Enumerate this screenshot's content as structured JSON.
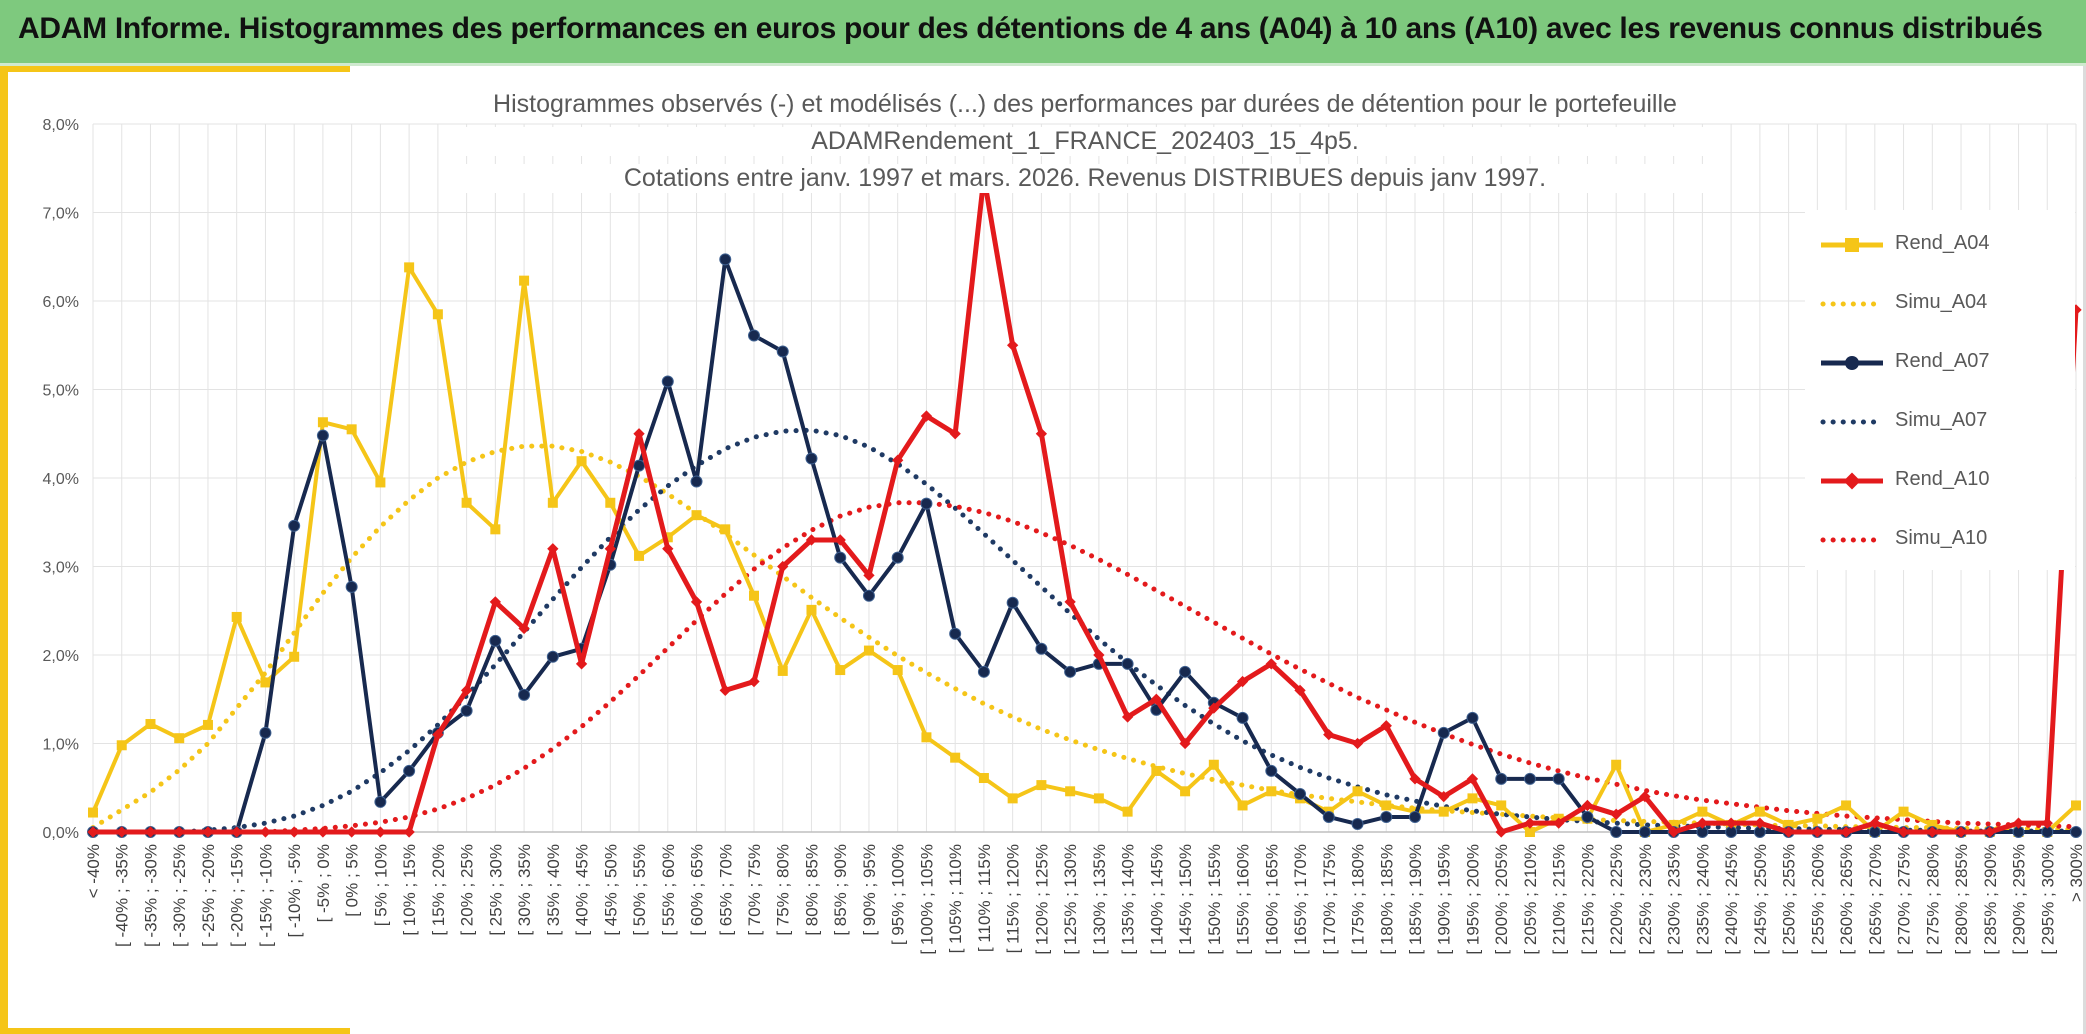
{
  "header": {
    "title": "ADAM Informe. Histogrammes des performances en euros pour des détentions de 4 ans (A04) à 10 ans (A10) avec les revenus connus distribués"
  },
  "chart_data": {
    "type": "line",
    "title_lines": [
      "Histogrammes observés (-) et modélisés (...) des performances par durées de détention pour le portefeuille",
      "ADAMRendement_1_FRANCE_202403_15_4p5.",
      "Cotations entre janv. 1997 et mars. 2026. Revenus DISTRIBUES depuis janv 1997."
    ],
    "ylim": [
      0,
      8
    ],
    "yticks": [
      "0,0%",
      "1,0%",
      "2,0%",
      "3,0%",
      "4,0%",
      "5,0%",
      "6,0%",
      "7,0%",
      "8,0%"
    ],
    "grid": true,
    "legend_position": "right",
    "categories": [
      "< -40%",
      "[ -40% ; -35%",
      "[ -35% ; -30%",
      "[ -30% ; -25%",
      "[ -25% ; -20%",
      "[ -20% ; -15%",
      "[ -15% ; -10%",
      "[ -10% ; -5%",
      "[ -5% ; 0%",
      "[ 0% ; 5%",
      "[ 5% ; 10%",
      "[ 10% ; 15%",
      "[ 15% ; 20%",
      "[ 20% ; 25%",
      "[ 25% ; 30%",
      "[ 30% ; 35%",
      "[ 35% ; 40%",
      "[ 40% ; 45%",
      "[ 45% ; 50%",
      "[ 50% ; 55%",
      "[ 55% ; 60%",
      "[ 60% ; 65%",
      "[ 65% ; 70%",
      "[ 70% ; 75%",
      "[ 75% ; 80%",
      "[ 80% ; 85%",
      "[ 85% ; 90%",
      "[ 90% ; 95%",
      "[ 95% ; 100%",
      "[ 100% ; 105%",
      "[ 105% ; 110%",
      "[ 110% ; 115%",
      "[ 115% ; 120%",
      "[ 120% ; 125%",
      "[ 125% ; 130%",
      "[ 130% ; 135%",
      "[ 135% ; 140%",
      "[ 140% ; 145%",
      "[ 145% ; 150%",
      "[ 150% ; 155%",
      "[ 155% ; 160%",
      "[ 160% ; 165%",
      "[ 165% ; 170%",
      "[ 170% ; 175%",
      "[ 175% ; 180%",
      "[ 180% ; 185%",
      "[ 185% ; 190%",
      "[ 190% ; 195%",
      "[ 195% ; 200%",
      "[ 200% ; 205%",
      "[ 205% ; 210%",
      "[ 210% ; 215%",
      "[ 215% ; 220%",
      "[ 220% ; 225%",
      "[ 225% ; 230%",
      "[ 230% ; 235%",
      "[ 235% ; 240%",
      "[ 240% ; 245%",
      "[ 245% ; 250%",
      "[ 250% ; 255%",
      "[ 255% ; 260%",
      "[ 260% ; 265%",
      "[ 265% ; 270%",
      "[ 270% ; 275%",
      "[ 275% ; 280%",
      "[ 280% ; 285%",
      "[ 285% ; 290%",
      "[ 290% ; 295%",
      "[ 295% ; 300%",
      "> 300%"
    ],
    "series": [
      {
        "name": "Rend_A04",
        "color": "#f5c518",
        "style": "solid",
        "marker": "square",
        "values": [
          0.22,
          0.98,
          1.22,
          1.06,
          1.21,
          2.43,
          1.69,
          1.98,
          4.63,
          4.55,
          3.95,
          6.38,
          5.85,
          3.72,
          3.42,
          6.23,
          3.72,
          4.19,
          3.72,
          3.12,
          3.33,
          3.58,
          3.42,
          2.67,
          1.82,
          2.51,
          1.83,
          2.05,
          1.83,
          1.07,
          0.84,
          0.61,
          0.38,
          0.53,
          0.46,
          0.38,
          0.23,
          0.69,
          0.46,
          0.76,
          0.3,
          0.46,
          0.38,
          0.23,
          0.46,
          0.3,
          0.23,
          0.23,
          0.38,
          0.3,
          0.0,
          0.15,
          0.15,
          0.76,
          0.0,
          0.08,
          0.23,
          0.08,
          0.23,
          0.08,
          0.15,
          0.3,
          0.0,
          0.23,
          0.08,
          0.0,
          0.0,
          0.0,
          0.0,
          0.3
        ]
      },
      {
        "name": "Simu_A04",
        "color": "#f5c518",
        "style": "dotted",
        "marker": "none",
        "values": [
          0.05,
          0.25,
          0.45,
          0.7,
          1.0,
          1.4,
          1.8,
          2.25,
          2.7,
          3.1,
          3.45,
          3.75,
          4.0,
          4.18,
          4.3,
          4.36,
          4.36,
          4.3,
          4.18,
          4.02,
          3.82,
          3.6,
          3.37,
          3.13,
          2.89,
          2.65,
          2.42,
          2.2,
          1.99,
          1.8,
          1.62,
          1.45,
          1.3,
          1.16,
          1.04,
          0.93,
          0.83,
          0.74,
          0.66,
          0.59,
          0.53,
          0.47,
          0.42,
          0.38,
          0.34,
          0.3,
          0.27,
          0.24,
          0.22,
          0.2,
          0.18,
          0.16,
          0.14,
          0.13,
          0.12,
          0.11,
          0.1,
          0.09,
          0.08,
          0.07,
          0.07,
          0.06,
          0.06,
          0.05,
          0.05,
          0.04,
          0.04,
          0.04,
          0.03,
          0.03
        ]
      },
      {
        "name": "Rend_A07",
        "color": "#17294f",
        "style": "solid",
        "marker": "circle",
        "values": [
          0.0,
          0.0,
          0.0,
          0.0,
          0.0,
          0.0,
          1.12,
          3.46,
          4.48,
          2.77,
          0.34,
          0.69,
          1.12,
          1.37,
          2.16,
          1.55,
          1.98,
          2.07,
          3.02,
          4.14,
          5.09,
          3.96,
          6.47,
          5.61,
          5.43,
          4.22,
          3.1,
          2.67,
          3.1,
          3.71,
          2.24,
          1.81,
          2.59,
          2.07,
          1.81,
          1.9,
          1.9,
          1.38,
          1.81,
          1.46,
          1.29,
          0.69,
          0.43,
          0.17,
          0.09,
          0.17,
          0.17,
          1.12,
          1.29,
          0.6,
          0.6,
          0.6,
          0.17,
          0.0,
          0.0,
          0.0,
          0.0,
          0.0,
          0.0,
          0.0,
          0.0,
          0.0,
          0.0,
          0.0,
          0.0,
          0.0,
          0.0,
          0.0,
          0.0,
          0.0
        ]
      },
      {
        "name": "Simu_A07",
        "color": "#1f3a64",
        "style": "dotted",
        "marker": "none",
        "values": [
          0.0,
          0.0,
          0.0,
          0.0,
          0.02,
          0.05,
          0.1,
          0.18,
          0.3,
          0.46,
          0.67,
          0.92,
          1.21,
          1.54,
          1.89,
          2.26,
          2.63,
          2.99,
          3.33,
          3.64,
          3.91,
          4.14,
          4.33,
          4.46,
          4.53,
          4.54,
          4.48,
          4.35,
          4.16,
          3.93,
          3.66,
          3.37,
          3.07,
          2.77,
          2.47,
          2.18,
          1.91,
          1.66,
          1.43,
          1.22,
          1.03,
          0.87,
          0.73,
          0.61,
          0.51,
          0.42,
          0.35,
          0.29,
          0.24,
          0.2,
          0.17,
          0.14,
          0.12,
          0.1,
          0.08,
          0.07,
          0.06,
          0.05,
          0.04,
          0.04,
          0.03,
          0.03,
          0.02,
          0.02,
          0.02,
          0.01,
          0.01,
          0.01,
          0.01,
          0.01
        ]
      },
      {
        "name": "Rend_A10",
        "color": "#e31a1c",
        "style": "solid",
        "marker": "diamond",
        "values": [
          0.0,
          0.0,
          0.0,
          0.0,
          0.0,
          0.0,
          0.0,
          0.0,
          0.0,
          0.0,
          0.0,
          0.0,
          1.1,
          1.6,
          2.6,
          2.3,
          3.2,
          1.9,
          3.2,
          4.5,
          3.2,
          2.6,
          1.6,
          1.7,
          3.0,
          3.3,
          3.3,
          2.9,
          4.2,
          4.7,
          4.5,
          7.4,
          5.5,
          4.5,
          2.6,
          2.0,
          1.3,
          1.5,
          1.0,
          1.4,
          1.7,
          1.9,
          1.6,
          1.1,
          1.0,
          1.2,
          0.6,
          0.4,
          0.6,
          0.0,
          0.1,
          0.1,
          0.3,
          0.2,
          0.4,
          0.0,
          0.1,
          0.1,
          0.1,
          0.0,
          0.0,
          0.0,
          0.1,
          0.0,
          0.0,
          0.0,
          0.0,
          0.1,
          0.1,
          5.9
        ]
      },
      {
        "name": "Simu_A10",
        "color": "#e31a1c",
        "style": "dotted",
        "marker": "none",
        "values": [
          0.0,
          0.0,
          0.0,
          0.0,
          0.0,
          0.0,
          0.0,
          0.02,
          0.04,
          0.07,
          0.11,
          0.17,
          0.26,
          0.38,
          0.53,
          0.72,
          0.94,
          1.19,
          1.47,
          1.77,
          2.08,
          2.39,
          2.69,
          2.97,
          3.21,
          3.41,
          3.57,
          3.67,
          3.72,
          3.72,
          3.68,
          3.61,
          3.51,
          3.38,
          3.24,
          3.08,
          2.91,
          2.73,
          2.55,
          2.37,
          2.19,
          2.01,
          1.84,
          1.68,
          1.52,
          1.38,
          1.24,
          1.11,
          0.99,
          0.88,
          0.78,
          0.69,
          0.61,
          0.54,
          0.47,
          0.41,
          0.36,
          0.32,
          0.28,
          0.24,
          0.21,
          0.18,
          0.16,
          0.14,
          0.12,
          0.1,
          0.09,
          0.08,
          0.07,
          0.06
        ]
      }
    ]
  }
}
